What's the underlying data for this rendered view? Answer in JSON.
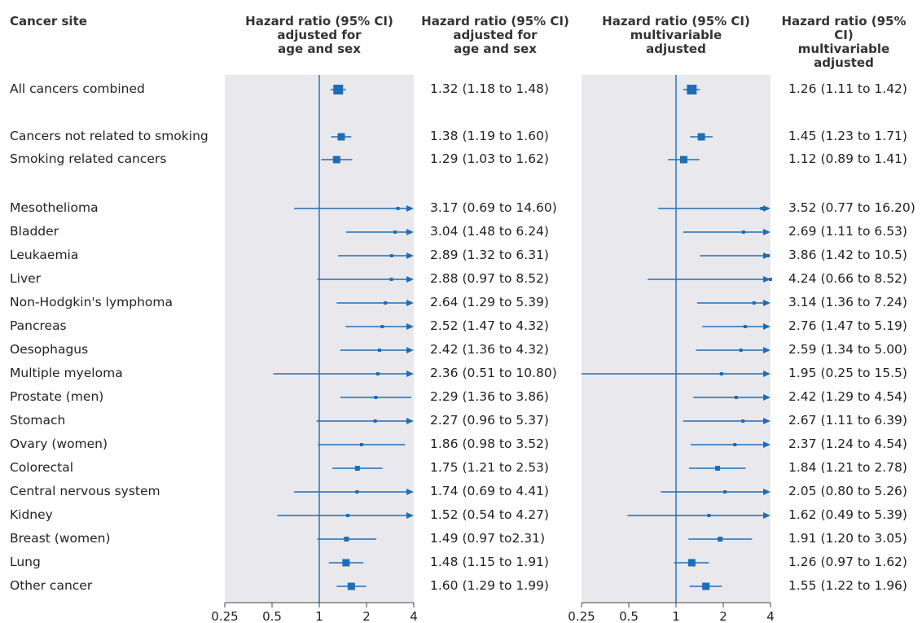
{
  "header": {
    "site": "Cancer site",
    "panel1": "Hazard ratio (95% CI)\nadjusted for\nage and sex",
    "ci1": "Hazard ratio (95% CI)\nadjusted for\nage and sex",
    "panel2": "Hazard ratio (95% CI)\nmultivariable\nadjusted",
    "ci2": "Hazard ratio (95% CI)\nmultivariable\nadjusted"
  },
  "chart_data": {
    "type": "forest",
    "x_scale": "log",
    "xlim": [
      0.25,
      4
    ],
    "reference_line": 1,
    "x_ticks": [
      "0.25",
      "0.5",
      "1",
      "2",
      "4"
    ],
    "rows": [
      {
        "site": "All cancers combined",
        "hr1": 1.32,
        "lo1": 1.18,
        "hi1": 1.48,
        "ci1": "1.32 (1.18 to 1.48)",
        "hr2": 1.26,
        "lo2": 1.11,
        "hi2": 1.42,
        "ci2": "1.26 (1.11 to 1.42)",
        "weight": 3
      },
      {
        "site": "Cancers not related to smoking",
        "hr1": 1.38,
        "lo1": 1.19,
        "hi1": 1.6,
        "ci1": "1.38 (1.19 to 1.60)",
        "hr2": 1.45,
        "lo2": 1.23,
        "hi2": 1.71,
        "ci2": "1.45 (1.23 to 1.71)",
        "weight": 2
      },
      {
        "site": "Smoking related cancers",
        "hr1": 1.29,
        "lo1": 1.03,
        "hi1": 1.62,
        "ci1": "1.29 (1.03 to 1.62)",
        "hr2": 1.12,
        "lo2": 0.89,
        "hi2": 1.41,
        "ci2": "1.12 (0.89 to 1.41)",
        "weight": 2
      },
      {
        "site": "Mesothelioma",
        "hr1": 3.17,
        "lo1": 0.69,
        "hi1": 14.6,
        "ci1": "3.17 (0.69 to 14.60)",
        "hr2": 3.52,
        "lo2": 0.77,
        "hi2": 16.2,
        "ci2": "3.52 (0.77 to 16.20)",
        "weight": 0
      },
      {
        "site": "Bladder",
        "hr1": 3.04,
        "lo1": 1.48,
        "hi1": 6.24,
        "ci1": "3.04 (1.48 to 6.24)",
        "hr2": 2.69,
        "lo2": 1.11,
        "hi2": 6.53,
        "ci2": "2.69 (1.11 to 6.53)",
        "weight": 0
      },
      {
        "site": "Leukaemia",
        "hr1": 2.89,
        "lo1": 1.32,
        "hi1": 6.31,
        "ci1": "2.89 (1.32 to 6.31)",
        "hr2": 3.86,
        "lo2": 1.42,
        "hi2": 10.5,
        "ci2": "3.86 (1.42 to 10.5)",
        "weight": 0
      },
      {
        "site": "Liver",
        "hr1": 2.88,
        "lo1": 0.97,
        "hi1": 8.52,
        "ci1": "2.88 (0.97 to 8.52)",
        "hr2": 4.24,
        "lo2": 0.66,
        "hi2": 8.52,
        "ci2": "4.24 (0.66 to 8.52)",
        "weight": 0
      },
      {
        "site": "Non-Hodgkin's lymphoma",
        "hr1": 2.64,
        "lo1": 1.29,
        "hi1": 5.39,
        "ci1": "2.64 (1.29 to 5.39)",
        "hr2": 3.14,
        "lo2": 1.36,
        "hi2": 7.24,
        "ci2": "3.14 (1.36 to 7.24)",
        "weight": 0
      },
      {
        "site": "Pancreas",
        "hr1": 2.52,
        "lo1": 1.47,
        "hi1": 4.32,
        "ci1": "2.52 (1.47 to 4.32)",
        "hr2": 2.76,
        "lo2": 1.47,
        "hi2": 5.19,
        "ci2": "2.76 (1.47 to 5.19)",
        "weight": 0
      },
      {
        "site": "Oesophagus",
        "hr1": 2.42,
        "lo1": 1.36,
        "hi1": 4.32,
        "ci1": "2.42 (1.36 to 4.32)",
        "hr2": 2.59,
        "lo2": 1.34,
        "hi2": 5.0,
        "ci2": "2.59 (1.34 to 5.00)",
        "weight": 0
      },
      {
        "site": "Multiple myeloma",
        "hr1": 2.36,
        "lo1": 0.51,
        "hi1": 10.8,
        "ci1": "2.36 (0.51 to 10.80)",
        "hr2": 1.95,
        "lo2": 0.25,
        "hi2": 15.5,
        "ci2": "1.95 (0.25 to 15.5)",
        "weight": 0
      },
      {
        "site": "Prostate (men)",
        "hr1": 2.29,
        "lo1": 1.36,
        "hi1": 3.86,
        "ci1": "2.29 (1.36 to 3.86)",
        "hr2": 2.42,
        "lo2": 1.29,
        "hi2": 4.54,
        "ci2": "2.42 (1.29 to 4.54)",
        "weight": 0
      },
      {
        "site": "Stomach",
        "hr1": 2.27,
        "lo1": 0.96,
        "hi1": 5.37,
        "ci1": "2.27 (0.96 to 5.37)",
        "hr2": 2.67,
        "lo2": 1.11,
        "hi2": 6.39,
        "ci2": "2.67 (1.11 to 6.39)",
        "weight": 0
      },
      {
        "site": "Ovary (women)",
        "hr1": 1.86,
        "lo1": 0.98,
        "hi1": 3.52,
        "ci1": "1.86 (0.98 to 3.52)",
        "hr2": 2.37,
        "lo2": 1.24,
        "hi2": 4.54,
        "ci2": "2.37 (1.24 to 4.54)",
        "weight": 0
      },
      {
        "site": "Colorectal",
        "hr1": 1.75,
        "lo1": 1.21,
        "hi1": 2.53,
        "ci1": "1.75 (1.21 to 2.53)",
        "hr2": 1.84,
        "lo2": 1.21,
        "hi2": 2.78,
        "ci2": "1.84 (1.21 to 2.78)",
        "weight": 1
      },
      {
        "site": "Central nervous system",
        "hr1": 1.74,
        "lo1": 0.69,
        "hi1": 4.41,
        "ci1": "1.74 (0.69 to 4.41)",
        "hr2": 2.05,
        "lo2": 0.8,
        "hi2": 5.26,
        "ci2": "2.05 (0.80 to 5.26)",
        "weight": 0
      },
      {
        "site": "Kidney",
        "hr1": 1.52,
        "lo1": 0.54,
        "hi1": 4.27,
        "ci1": "1.52 (0.54 to 4.27)",
        "hr2": 1.62,
        "lo2": 0.49,
        "hi2": 5.39,
        "ci2": "1.62 (0.49 to 5.39)",
        "weight": 0
      },
      {
        "site": "Breast (women)",
        "hr1": 1.49,
        "lo1": 0.97,
        "hi1": 2.31,
        "ci1": "1.49 (0.97 to2.31)",
        "hr2": 1.91,
        "lo2": 1.2,
        "hi2": 3.05,
        "ci2": "1.91 (1.20 to 3.05)",
        "weight": 1
      },
      {
        "site": "Lung",
        "hr1": 1.48,
        "lo1": 1.15,
        "hi1": 1.91,
        "ci1": "1.48 (1.15 to 1.91)",
        "hr2": 1.26,
        "lo2": 0.97,
        "hi2": 1.62,
        "ci2": "1.26 (0.97 to 1.62)",
        "weight": 2
      },
      {
        "site": "Other cancer",
        "hr1": 1.6,
        "lo1": 1.29,
        "hi1": 1.99,
        "ci1": "1.60 (1.29 to 1.99)",
        "hr2": 1.55,
        "lo2": 1.22,
        "hi2": 1.96,
        "ci2": "1.55 (1.22 to 1.96)",
        "weight": 2
      }
    ]
  },
  "colors": {
    "marker": "#1f6db5",
    "panel_background": "#e9e9ed",
    "reference_line": "#1f6db5",
    "text": "#222222"
  }
}
